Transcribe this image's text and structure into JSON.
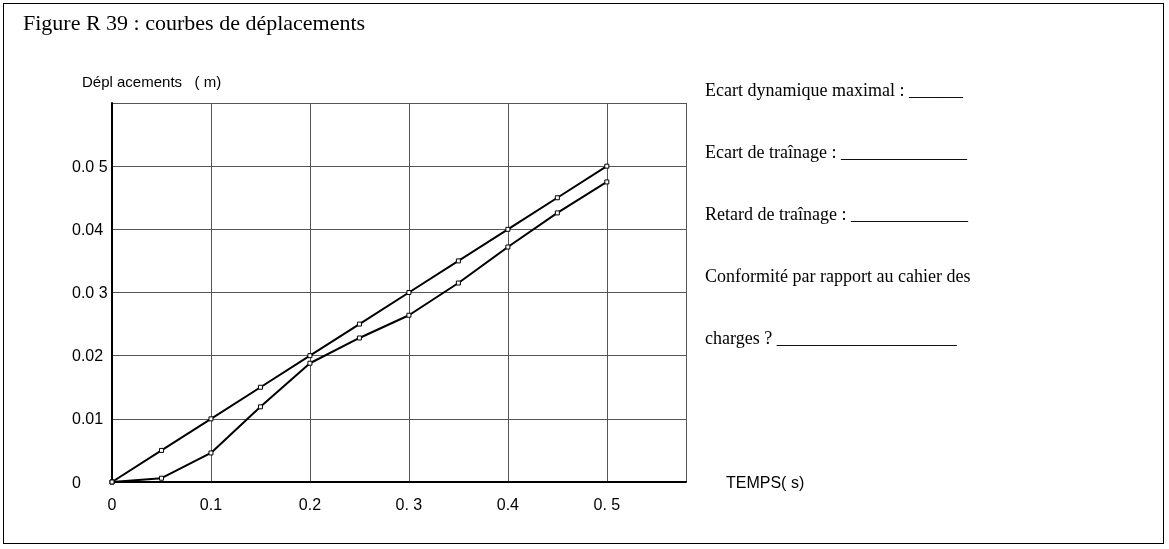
{
  "chart_data": {
    "type": "line",
    "title": "Figure R 39 : courbes de déplacements",
    "xlabel": "TEMPS( s)",
    "ylabel": "Dépl acements   ( m)",
    "xlim": [
      0,
      0.58
    ],
    "ylim": [
      0,
      0.06
    ],
    "xticks": [
      0,
      0.1,
      0.2,
      {
        "value": 0.3,
        "label": "0. 3"
      },
      0.4,
      {
        "value": 0.5,
        "label": "0. 5"
      }
    ],
    "yticks": [
      0,
      0.01,
      0.02,
      {
        "value": 0.03,
        "label": "0.0 3"
      },
      0.04,
      {
        "value": 0.05,
        "label": "0.0 5"
      },
      {
        "value": 0.06,
        "label": null
      }
    ],
    "x": [
      0,
      0.05,
      0.1,
      0.15,
      0.2,
      0.25,
      0.3,
      0.35,
      0.4,
      0.45,
      0.5
    ],
    "series": [
      {
        "color": "#000000",
        "values": [
          0,
          0.005,
          0.01,
          0.015,
          0.02,
          0.025,
          0.03,
          0.035,
          0.04,
          0.045,
          0.05
        ]
      },
      {
        "color": "#000000",
        "values": [
          0,
          0.0006,
          0.0046,
          0.0119,
          0.0188,
          0.0228,
          0.0264,
          0.0315,
          0.0372,
          0.0426,
          0.0475
        ]
      }
    ],
    "marker": "square",
    "line_style": "solid",
    "grid": true,
    "annotations": [
      "Ecart dynamique maximal : ______",
      "Ecart de traînage : ______________",
      "Retard de traînage : _____________",
      "Conformité par rapport au cahier des",
      "charges ? ____________________"
    ]
  }
}
